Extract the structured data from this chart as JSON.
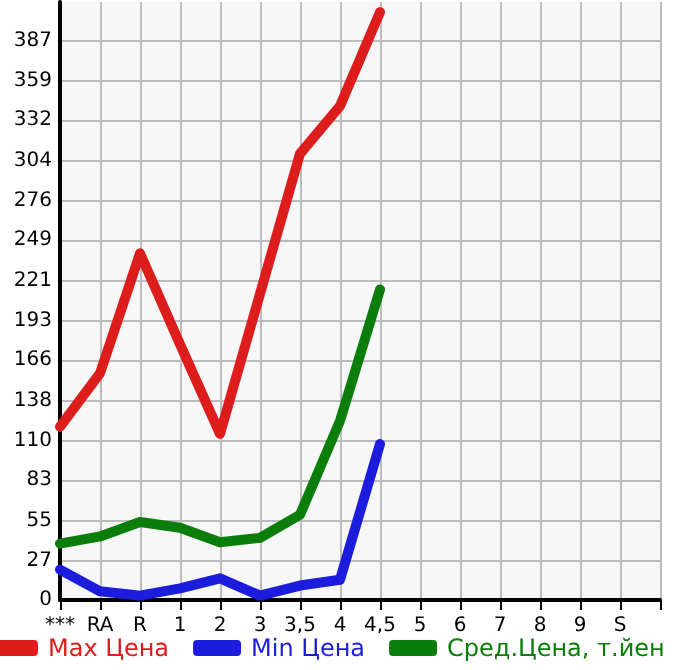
{
  "chart_data": {
    "type": "line",
    "categories": [
      "***",
      "RA",
      "R",
      "1",
      "2",
      "3",
      "3,5",
      "4",
      "4,5",
      "5",
      "6",
      "7",
      "8",
      "9",
      "S",
      null
    ],
    "series": [
      {
        "name": "Max Цена",
        "color": "#dd1c1c",
        "values": [
          120,
          157,
          240,
          177,
          115,
          212,
          309,
          342,
          407,
          null,
          null,
          null,
          null,
          null,
          null,
          null
        ]
      },
      {
        "name": "Min Цена",
        "color": "#1c1cdd",
        "values": [
          21,
          6,
          3,
          8,
          15,
          3,
          10,
          14,
          108,
          null,
          null,
          null,
          null,
          null,
          null,
          null
        ]
      },
      {
        "name": "Сред.Цена, т.йен",
        "color": "#0a7d0a",
        "values": [
          39,
          44,
          54,
          50,
          40,
          43,
          59,
          124,
          215,
          null,
          null,
          null,
          null,
          null,
          null,
          null
        ]
      }
    ],
    "ylim": [
      0,
      414
    ],
    "yticks": [
      0,
      27,
      55,
      83,
      110,
      138,
      166,
      193,
      221,
      249,
      276,
      304,
      332,
      359,
      387
    ],
    "grid": true,
    "legend": "bottom",
    "marker": "none",
    "line_style": "solid"
  }
}
